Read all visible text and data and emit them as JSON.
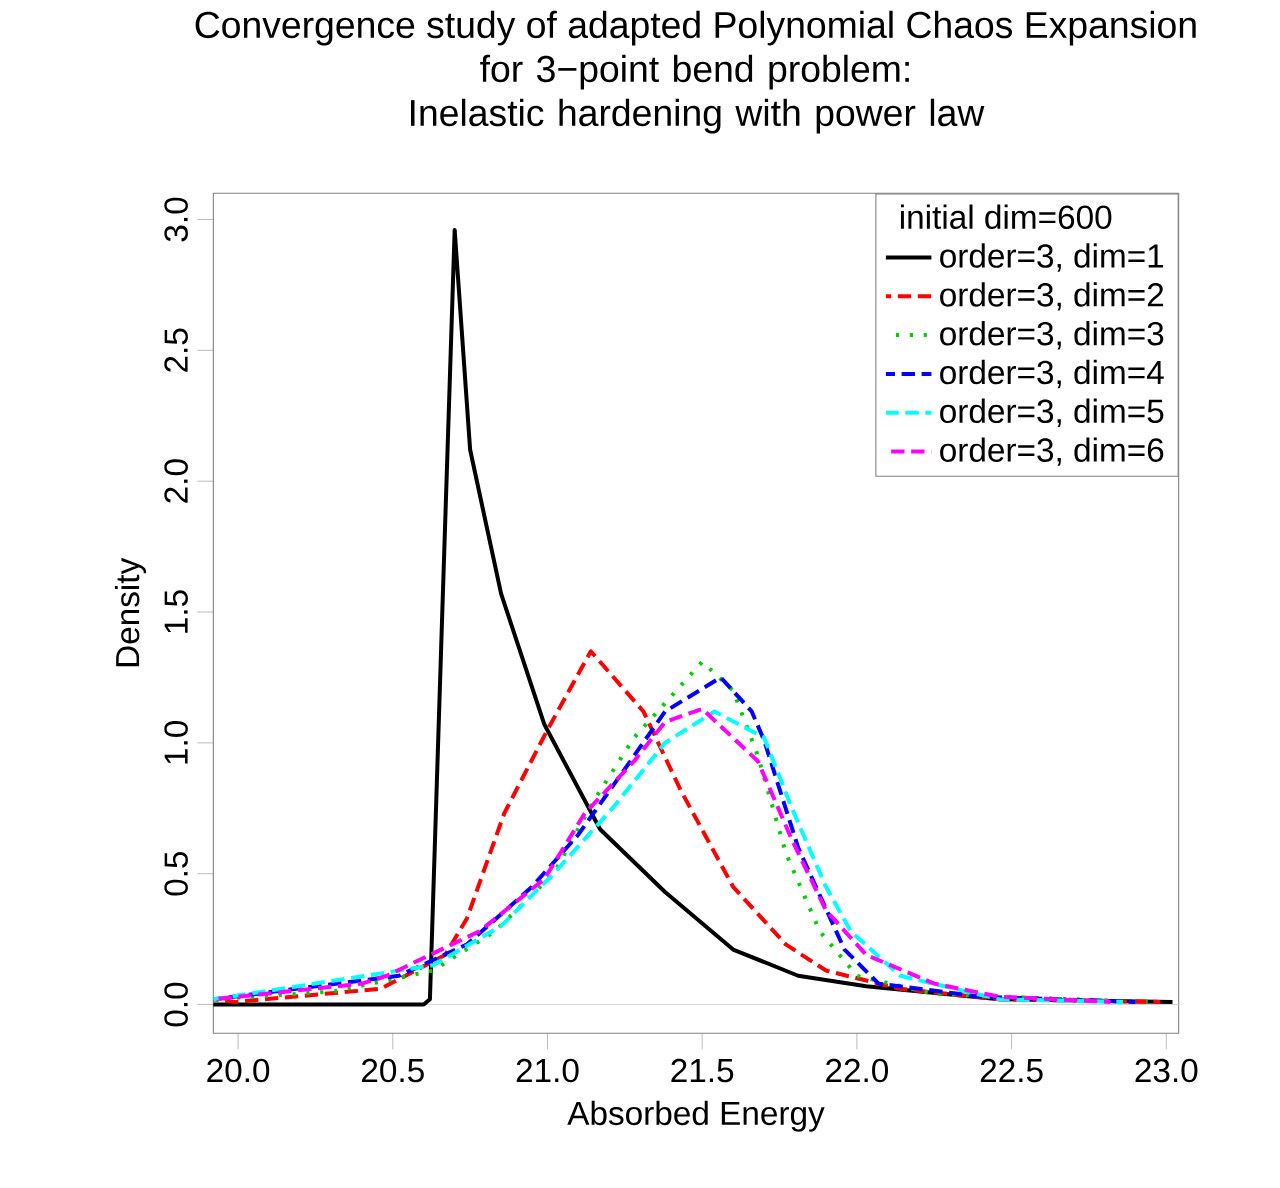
{
  "chart_data": {
    "type": "line",
    "title": "Convergence study of adapted Polynomial Chaos Expansion",
    "subtitle": "for 3−point bend  problem: Inelastic hardening with power law",
    "xlabel": "Absorbed Energy",
    "ylabel": "Density",
    "legend_title": "initial dim=600",
    "legend": "top right",
    "xlim": [
      19.92,
      23.04
    ],
    "ylim": [
      -0.11,
      3.1
    ],
    "xticks": [
      {
        "value": 20,
        "label": "20.0"
      },
      {
        "value": 20.5,
        "label": "20.5"
      },
      {
        "value": 21,
        "label": "21.0"
      },
      {
        "value": 21.5,
        "label": "21.5"
      },
      {
        "value": 22,
        "label": "22.0"
      },
      {
        "value": 22.5,
        "label": "22.5"
      },
      {
        "value": 23,
        "label": "23.0"
      }
    ],
    "yticks": [
      {
        "value": 0,
        "label": "0.0"
      },
      {
        "value": 0.5,
        "label": "0.5"
      },
      {
        "value": 1,
        "label": "1.0"
      },
      {
        "value": 1.5,
        "label": "1.5"
      },
      {
        "value": 2,
        "label": "2.0"
      },
      {
        "value": 2.5,
        "label": "2.5"
      },
      {
        "value": 3,
        "label": "3.0"
      }
    ],
    "ref_lines": [
      {
        "axis": "y",
        "value": 0,
        "color": "#d3d3d3"
      }
    ],
    "series": [
      {
        "name": "order=3, dim=1",
        "color": "#000000",
        "line_style": "solid",
        "x": [
          19.92,
          20.6,
          20.62,
          20.66,
          20.7,
          20.75,
          20.85,
          20.99,
          21.17,
          21.38,
          21.6,
          21.81,
          22.03,
          22.46,
          23.02
        ],
        "values": [
          0,
          0,
          0.02,
          1.5,
          2.96,
          2.12,
          1.57,
          1.07,
          0.67,
          0.43,
          0.21,
          0.11,
          0.07,
          0.02,
          0.01
        ]
      },
      {
        "name": "order=3, dim=2",
        "color": "#ff0000",
        "line_style": "dashed",
        "x": [
          19.92,
          19.99,
          20.46,
          20.67,
          20.74,
          20.86,
          21.0,
          21.14,
          21.31,
          21.43,
          21.6,
          21.77,
          21.9,
          22.14,
          22.46,
          22.98
        ],
        "values": [
          0.02,
          0.01,
          0.06,
          0.19,
          0.33,
          0.73,
          1.05,
          1.35,
          1.12,
          0.82,
          0.45,
          0.23,
          0.13,
          0.06,
          0.02,
          0.01
        ]
      },
      {
        "name": "order=3, dim=3",
        "color": "#00cd00",
        "line_style": "dotted",
        "x": [
          19.92,
          20.31,
          20.63,
          20.83,
          21.02,
          21.15,
          21.28,
          21.5,
          21.6,
          21.68,
          21.77,
          21.88,
          22.0,
          22.25,
          22.94
        ],
        "values": [
          0.02,
          0.05,
          0.13,
          0.28,
          0.5,
          0.78,
          1.02,
          1.31,
          1.2,
          0.95,
          0.58,
          0.28,
          0.11,
          0.04,
          0.01
        ]
      },
      {
        "name": "order=3, dim=4",
        "color": "#0000ff",
        "line_style": "dashed",
        "x": [
          19.92,
          20.52,
          20.74,
          20.95,
          21.1,
          21.25,
          21.38,
          21.56,
          21.66,
          21.7,
          21.81,
          21.96,
          22.07,
          22.4,
          22.9
        ],
        "values": [
          0.02,
          0.11,
          0.23,
          0.45,
          0.65,
          0.9,
          1.12,
          1.25,
          1.12,
          1.01,
          0.6,
          0.21,
          0.08,
          0.03,
          0.01
        ]
      },
      {
        "name": "order=3, dim=5",
        "color": "#00ffff",
        "line_style": "dashed",
        "x": [
          19.92,
          20.63,
          20.85,
          21.02,
          21.21,
          21.38,
          21.54,
          21.7,
          21.79,
          21.9,
          21.98,
          22.14,
          22.46,
          22.86
        ],
        "values": [
          0.02,
          0.15,
          0.3,
          0.5,
          0.75,
          1.0,
          1.12,
          1.02,
          0.75,
          0.45,
          0.28,
          0.11,
          0.02,
          0.01
        ]
      },
      {
        "name": "order=3, dim=6",
        "color": "#ff00ff",
        "line_style": "dashed",
        "x": [
          19.92,
          20.4,
          20.48,
          20.78,
          20.99,
          21.12,
          21.28,
          21.38,
          21.5,
          21.68,
          21.79,
          21.9,
          22.03,
          22.25,
          22.46,
          22.82
        ],
        "values": [
          0.02,
          0.08,
          0.11,
          0.28,
          0.48,
          0.73,
          0.93,
          1.08,
          1.13,
          0.93,
          0.63,
          0.36,
          0.19,
          0.08,
          0.03,
          0.01
        ]
      }
    ]
  }
}
